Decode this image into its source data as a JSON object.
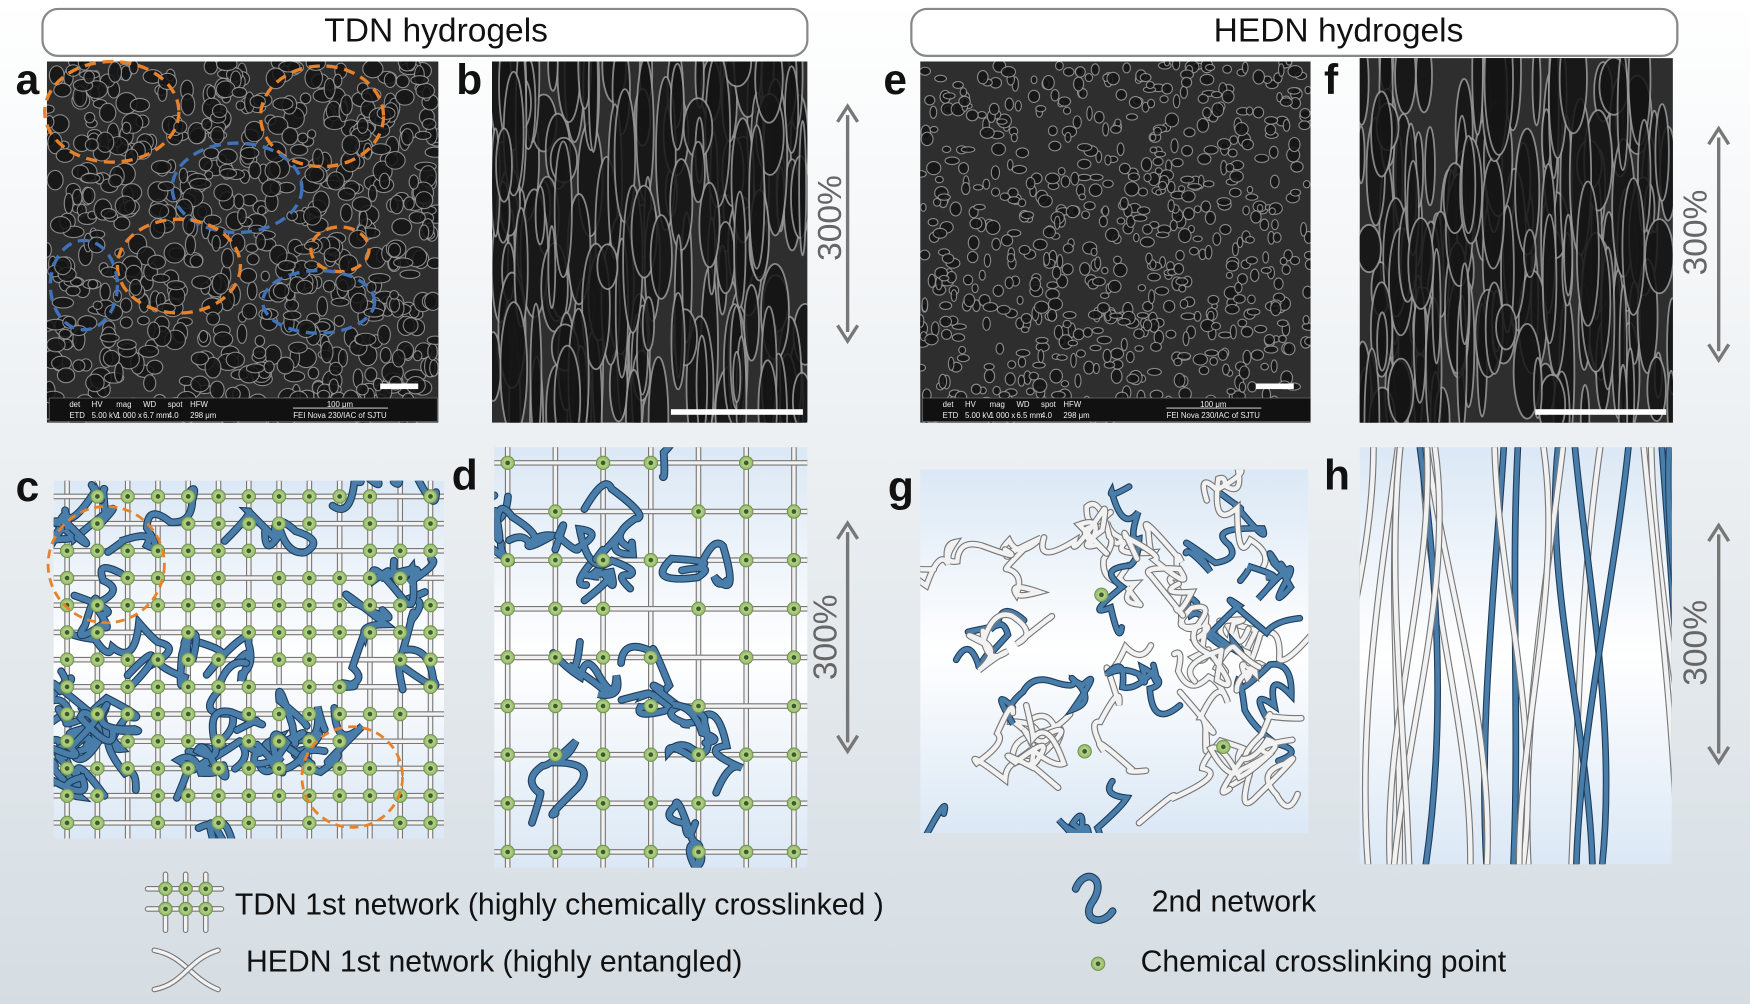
{
  "headers": [
    {
      "title": "TDN hydrogels"
    },
    {
      "title": "HEDN hydrogels"
    }
  ],
  "panels": [
    {
      "label": "a"
    },
    {
      "label": "b"
    },
    {
      "label": "e"
    },
    {
      "label": "f"
    },
    {
      "label": "c"
    },
    {
      "label": "d"
    },
    {
      "label": "g"
    },
    {
      "label": "h"
    }
  ],
  "strain_labels": [
    "300%",
    "300%",
    "300%",
    "300%"
  ],
  "sem_info_bars": [
    {
      "fields": [
        "det",
        "HV",
        "mag",
        "WD",
        "spot",
        "HFW"
      ],
      "values": [
        "ETD",
        "5.00 kV",
        "1 000 x",
        "6.7 mm",
        "4.0",
        "298 μm"
      ],
      "scale": "100 μm",
      "instrument": "FEI Nova 230/IAC of SJTU"
    },
    {
      "fields": [
        "det",
        "HV",
        "mag",
        "WD",
        "spot",
        "HFW"
      ],
      "values": [
        "ETD",
        "5.00 kV",
        "1 000 x",
        "6.5 mm",
        "4.0",
        "298 μm"
      ],
      "scale": "100 μm",
      "instrument": "FEI Nova 230/IAC of SJTU"
    }
  ],
  "legend": [
    {
      "label": "TDN 1st network (highly chemically crosslinked )"
    },
    {
      "label": "HEDN 1st network (highly entangled)"
    },
    {
      "label": "2nd network"
    },
    {
      "label": "Chemical crosslinking point"
    }
  ]
}
